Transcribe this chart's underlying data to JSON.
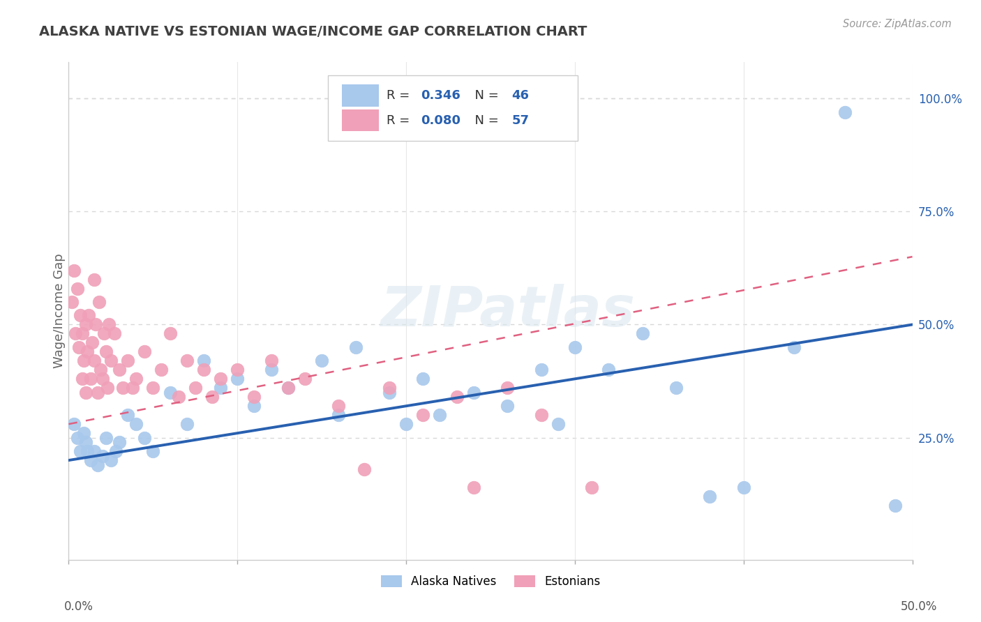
{
  "title": "ALASKA NATIVE VS ESTONIAN WAGE/INCOME GAP CORRELATION CHART",
  "source_text": "Source: ZipAtlas.com",
  "ylabel": "Wage/Income Gap",
  "xlim": [
    0.0,
    0.5
  ],
  "ylim": [
    -0.02,
    1.08
  ],
  "yticks_right": [
    0.25,
    0.5,
    0.75,
    1.0
  ],
  "ytick_labels_right": [
    "25.0%",
    "50.0%",
    "75.0%",
    "100.0%"
  ],
  "alaska_color": "#A8C8EC",
  "estonian_color": "#F0A0B8",
  "alaska_line_color": "#2860B0",
  "estonian_line_color": "#E06080",
  "watermark": "ZIPatlas",
  "background_color": "#ffffff",
  "grid_color": "#d8d8d8",
  "alaska_line_x0": 0.0,
  "alaska_line_y0": 0.2,
  "alaska_line_x1": 0.5,
  "alaska_line_y1": 0.5,
  "estonian_line_x0": 0.0,
  "estonian_line_y0": 0.28,
  "estonian_line_x1": 0.25,
  "estonian_line_y1": 0.42,
  "alaska_scatter_x": [
    0.003,
    0.005,
    0.007,
    0.009,
    0.01,
    0.011,
    0.013,
    0.015,
    0.017,
    0.02,
    0.022,
    0.025,
    0.028,
    0.03,
    0.035,
    0.04,
    0.045,
    0.05,
    0.06,
    0.07,
    0.08,
    0.09,
    0.1,
    0.11,
    0.12,
    0.13,
    0.15,
    0.16,
    0.17,
    0.19,
    0.2,
    0.21,
    0.22,
    0.24,
    0.26,
    0.28,
    0.29,
    0.3,
    0.32,
    0.34,
    0.36,
    0.38,
    0.4,
    0.43,
    0.46,
    0.49
  ],
  "alaska_scatter_y": [
    0.28,
    0.25,
    0.22,
    0.26,
    0.24,
    0.22,
    0.2,
    0.22,
    0.19,
    0.21,
    0.25,
    0.2,
    0.22,
    0.24,
    0.3,
    0.28,
    0.25,
    0.22,
    0.35,
    0.28,
    0.42,
    0.36,
    0.38,
    0.32,
    0.4,
    0.36,
    0.42,
    0.3,
    0.45,
    0.35,
    0.28,
    0.38,
    0.3,
    0.35,
    0.32,
    0.4,
    0.28,
    0.45,
    0.4,
    0.48,
    0.36,
    0.12,
    0.14,
    0.45,
    0.97,
    0.1
  ],
  "estonian_scatter_x": [
    0.002,
    0.003,
    0.004,
    0.005,
    0.006,
    0.007,
    0.008,
    0.008,
    0.009,
    0.01,
    0.01,
    0.011,
    0.012,
    0.013,
    0.014,
    0.015,
    0.015,
    0.016,
    0.017,
    0.018,
    0.019,
    0.02,
    0.021,
    0.022,
    0.023,
    0.024,
    0.025,
    0.027,
    0.03,
    0.032,
    0.035,
    0.038,
    0.04,
    0.045,
    0.05,
    0.055,
    0.06,
    0.065,
    0.07,
    0.075,
    0.08,
    0.085,
    0.09,
    0.1,
    0.11,
    0.12,
    0.13,
    0.14,
    0.16,
    0.175,
    0.19,
    0.21,
    0.23,
    0.24,
    0.26,
    0.28,
    0.31
  ],
  "estonian_scatter_y": [
    0.55,
    0.62,
    0.48,
    0.58,
    0.45,
    0.52,
    0.38,
    0.48,
    0.42,
    0.35,
    0.5,
    0.44,
    0.52,
    0.38,
    0.46,
    0.6,
    0.42,
    0.5,
    0.35,
    0.55,
    0.4,
    0.38,
    0.48,
    0.44,
    0.36,
    0.5,
    0.42,
    0.48,
    0.4,
    0.36,
    0.42,
    0.36,
    0.38,
    0.44,
    0.36,
    0.4,
    0.48,
    0.34,
    0.42,
    0.36,
    0.4,
    0.34,
    0.38,
    0.4,
    0.34,
    0.42,
    0.36,
    0.38,
    0.32,
    0.18,
    0.36,
    0.3,
    0.34,
    0.14,
    0.36,
    0.3,
    0.14
  ]
}
